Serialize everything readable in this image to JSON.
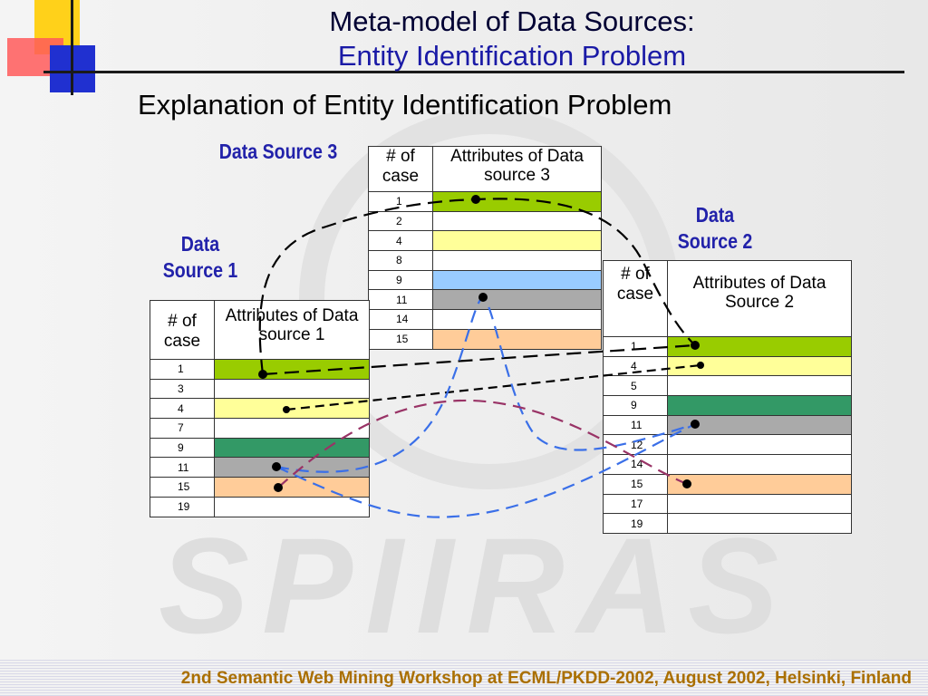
{
  "slide": {
    "title_line1": "Meta-model of Data Sources:",
    "title_line2": "Entity Identification Problem",
    "subtitle": "Explanation of Entity Identification Problem",
    "footer": "2nd Semantic Web Mining Workshop at ECML/PKDD-2002, August 2002, Helsinki, Finland",
    "watermark": "SPIIRAS"
  },
  "colors": {
    "green": "#99cc00",
    "yellow": "#ffff99",
    "blue": "#99ccff",
    "gray": "#aaaaaa",
    "dark_green": "#339966",
    "orange": "#ffcc99",
    "white": "#ffffff",
    "line_black": "#000000",
    "line_blue": "#3a6fe8",
    "line_purple": "#993366",
    "label_blue": "#2222aa"
  },
  "sources": {
    "ds1": {
      "label": "Data Source 1",
      "header_num": "# of case",
      "header_attr": "Attributes of Data source 1",
      "rows": [
        {
          "num": "1",
          "color": "green"
        },
        {
          "num": "3",
          "color": "white"
        },
        {
          "num": "4",
          "color": "yellow"
        },
        {
          "num": "7",
          "color": "white"
        },
        {
          "num": "9",
          "color": "dark_green"
        },
        {
          "num": "11",
          "color": "gray"
        },
        {
          "num": "15",
          "color": "orange"
        },
        {
          "num": "19",
          "color": "white"
        }
      ]
    },
    "ds2": {
      "label": "Data Source 2",
      "header_num": "# of case",
      "header_attr": "Attributes of Data Source 2",
      "rows": [
        {
          "num": "1",
          "color": "green"
        },
        {
          "num": "4",
          "color": "yellow"
        },
        {
          "num": "5",
          "color": "white"
        },
        {
          "num": "9",
          "color": "dark_green"
        },
        {
          "num": "11",
          "color": "gray"
        },
        {
          "num": "12",
          "color": "white"
        },
        {
          "num": "14",
          "color": "white"
        },
        {
          "num": "15",
          "color": "orange"
        },
        {
          "num": "17",
          "color": "white"
        },
        {
          "num": "19",
          "color": "white"
        }
      ]
    },
    "ds3": {
      "label": "Data Source 3",
      "header_num": "# of case",
      "header_attr": "Attributes of Data source 3",
      "rows": [
        {
          "num": "1",
          "color": "green"
        },
        {
          "num": "2",
          "color": "white"
        },
        {
          "num": "4",
          "color": "yellow"
        },
        {
          "num": "8",
          "color": "white"
        },
        {
          "num": "9",
          "color": "blue"
        },
        {
          "num": "11",
          "color": "gray"
        },
        {
          "num": "14",
          "color": "white"
        },
        {
          "num": "15",
          "color": "orange"
        }
      ]
    }
  },
  "links": [
    {
      "case": "1",
      "sources": [
        "ds1",
        "ds3",
        "ds2"
      ],
      "color": "line_black"
    },
    {
      "case": "4",
      "sources": [
        "ds1",
        "ds2"
      ],
      "color": "line_black"
    },
    {
      "case": "11",
      "sources": [
        "ds1",
        "ds3",
        "ds2"
      ],
      "color": "line_blue"
    },
    {
      "case": "15",
      "sources": [
        "ds1",
        "ds2"
      ],
      "color": "line_purple"
    }
  ]
}
